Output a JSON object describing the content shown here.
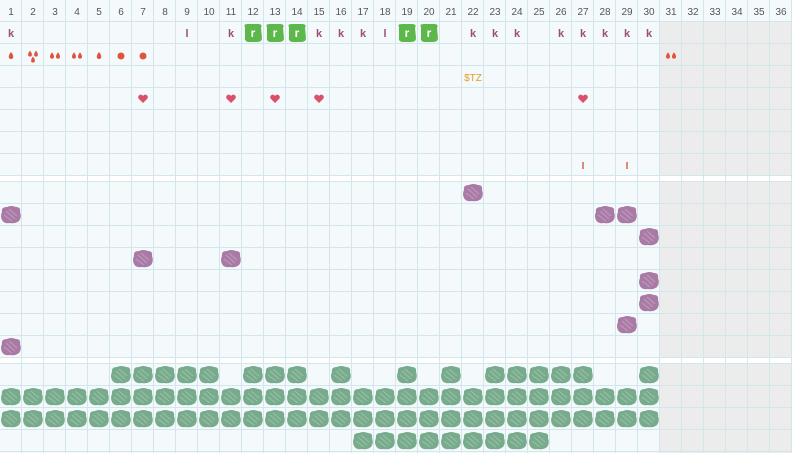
{
  "columns": [
    "1",
    "2",
    "3",
    "4",
    "5",
    "6",
    "7",
    "8",
    "9",
    "10",
    "11",
    "12",
    "13",
    "14",
    "15",
    "16",
    "17",
    "18",
    "19",
    "20",
    "21",
    "22",
    "23",
    "24",
    "25",
    "26",
    "27",
    "28",
    "29",
    "30",
    "31",
    "32",
    "33",
    "34",
    "35",
    "36"
  ],
  "active_columns": 30,
  "colors": {
    "grid": "#d3e6ec",
    "background": "#f4f9fc",
    "disabled": "#ececec",
    "separator": "#ffffff",
    "k_letter": "#9a4f79",
    "l_letter": "#9a4f79",
    "green_marker": "#5cb84a",
    "drop": "#e0533f",
    "heart": "#d9506a",
    "tick": "#e06040",
    "label": "#e0a020",
    "purple_blob": "#a97aa5",
    "green_blob": "#77ab8c"
  },
  "section1": {
    "row1": {
      "k_columns": [
        1,
        11,
        15,
        16,
        17,
        22,
        23,
        24,
        26,
        27,
        28,
        29,
        30
      ],
      "l_columns": [
        9,
        18
      ],
      "r_columns": [
        12,
        13,
        14,
        19,
        20
      ],
      "k_text": "k",
      "l_text": "l",
      "r_text": "r"
    },
    "row2": {
      "drops": [
        {
          "col": 1,
          "icon": "single-drop-icon"
        },
        {
          "col": 2,
          "icon": "triple-drop-icon"
        },
        {
          "col": 3,
          "icon": "double-drop-icon"
        },
        {
          "col": 4,
          "icon": "double-drop-icon"
        },
        {
          "col": 5,
          "icon": "single-drop-icon"
        },
        {
          "col": 6,
          "icon": "dot-icon"
        },
        {
          "col": 7,
          "icon": "dot-icon"
        },
        {
          "col": 31,
          "icon": "double-drop-icon"
        }
      ]
    },
    "row3": {
      "label": {
        "col": 22,
        "text": "$TZ"
      }
    },
    "row4": {
      "heart_columns": [
        7,
        11,
        13,
        15,
        27
      ]
    },
    "row7": {
      "tick_columns": [
        27,
        29
      ],
      "tick_text": "I"
    }
  },
  "section2": {
    "purple_blobs": [
      {
        "col": 22,
        "row": 1
      },
      {
        "col": 1,
        "row": 2
      },
      {
        "col": 28,
        "row": 2
      },
      {
        "col": 29,
        "row": 2
      },
      {
        "col": 30,
        "row": 3
      },
      {
        "col": 7,
        "row": 4
      },
      {
        "col": 11,
        "row": 4
      },
      {
        "col": 30,
        "row": 5
      },
      {
        "col": 30,
        "row": 6
      },
      {
        "col": 29,
        "row": 7
      },
      {
        "col": 1,
        "row": 8
      }
    ]
  },
  "section3": {
    "row1": [
      6,
      7,
      8,
      9,
      10,
      12,
      13,
      14,
      16,
      19,
      21,
      23,
      24,
      25,
      26,
      27,
      30
    ],
    "row2": [
      1,
      2,
      3,
      4,
      5,
      6,
      7,
      8,
      9,
      10,
      11,
      12,
      13,
      14,
      15,
      16,
      17,
      18,
      19,
      20,
      21,
      22,
      23,
      24,
      25,
      26,
      27,
      28,
      29,
      30
    ],
    "row3": [
      1,
      2,
      3,
      4,
      5,
      6,
      7,
      8,
      9,
      10,
      11,
      12,
      13,
      14,
      15,
      16,
      17,
      18,
      19,
      20,
      21,
      22,
      23,
      24,
      25,
      26,
      27,
      28,
      29,
      30
    ],
    "row4": [
      17,
      18,
      19,
      20,
      21,
      22,
      23,
      24,
      25
    ]
  }
}
